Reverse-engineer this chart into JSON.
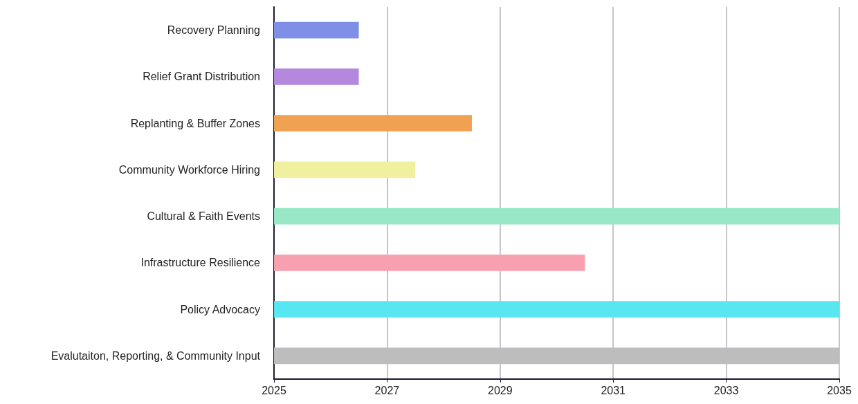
{
  "chart_data": {
    "type": "bar",
    "orientation": "horizontal",
    "categories": [
      "Recovery Planning",
      "Relief Grant Distribution",
      "Replanting & Buffer Zones",
      "Community Workforce Hiring",
      "Cultural & Faith Events",
      "Infrastructure Resilience",
      "Policy Advocacy",
      "Evalutaiton, Reporting, & Community Input"
    ],
    "base": [
      2025,
      2025,
      2025,
      2025,
      2025,
      2025,
      2025,
      2025
    ],
    "values": [
      1.5,
      1.5,
      3.5,
      2.5,
      10,
      5.5,
      10,
      10
    ],
    "colors": [
      "#7f8fe8",
      "#b388dd",
      "#f0a252",
      "#f0f0a0",
      "#98e8c8",
      "#f8a0b0",
      "#58e6f0",
      "#bdbdbd"
    ],
    "xlim": [
      2025,
      2035
    ],
    "xticks": [
      2025,
      2027,
      2029,
      2031,
      2033,
      2035
    ],
    "grid": "x"
  }
}
